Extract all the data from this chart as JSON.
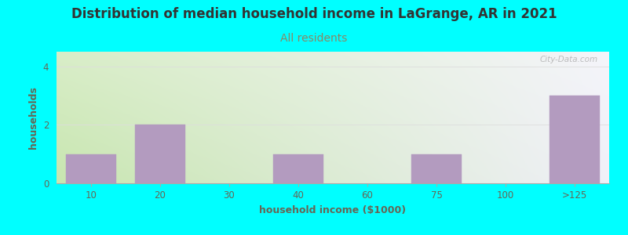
{
  "title": "Distribution of median household income in LaGrange, AR in 2021",
  "subtitle": "All residents",
  "xlabel": "household income ($1000)",
  "ylabel": "households",
  "background_color": "#00FFFF",
  "plot_bg_gradient_top_left": "#c8e6b0",
  "plot_bg_gradient_right": "#f0f0f8",
  "bar_color": "#b39bbf",
  "bar_edge_color": "#b39bbf",
  "categories": [
    "10",
    "20",
    "30",
    "40",
    "60",
    "75",
    "100",
    ">125"
  ],
  "values": [
    1,
    2,
    0,
    1,
    0,
    1,
    0,
    3
  ],
  "ylim": [
    0,
    4.5
  ],
  "yticks": [
    0,
    2,
    4
  ],
  "grid_color": "#dddddd",
  "title_fontsize": 12,
  "subtitle_fontsize": 10,
  "axis_label_fontsize": 9,
  "tick_fontsize": 8.5,
  "subtitle_color": "#888866",
  "title_color": "#333333",
  "tick_color": "#666655",
  "watermark_text": "City-Data.com"
}
